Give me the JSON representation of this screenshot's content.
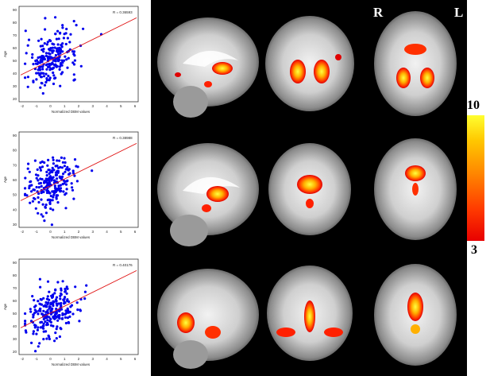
{
  "scatter_plots": [
    {
      "r_label": "R = 0.36593",
      "xlabel": "Normalized DBM values",
      "ylabel": "Age",
      "yticks": [
        "90",
        "80",
        "70",
        "60",
        "50",
        "40",
        "30",
        "20"
      ],
      "xticks": [
        "-2",
        "-1",
        "0",
        "1",
        "2",
        "3",
        "4",
        "5",
        "6"
      ]
    },
    {
      "r_label": "R = 0.38988",
      "xlabel": "Normalized DBM values",
      "ylabel": "Age",
      "yticks": [
        "90",
        "80",
        "70",
        "60",
        "50",
        "40",
        "30"
      ],
      "xticks": [
        "-2",
        "-1",
        "0",
        "1",
        "2",
        "3",
        "4",
        "5",
        "6"
      ]
    },
    {
      "r_label": "R = 0.40176",
      "xlabel": "Normalized DBM values",
      "ylabel": "Age",
      "yticks": [
        "90",
        "80",
        "70",
        "60",
        "50",
        "40",
        "30",
        "20"
      ],
      "xticks": [
        "-2",
        "-1",
        "0",
        "1",
        "2",
        "3",
        "4",
        "5",
        "6"
      ]
    }
  ],
  "orientation": {
    "right": "R",
    "left": "L"
  },
  "colorbar": {
    "max_label": "10",
    "min_label": "3"
  },
  "colors": {
    "points": "#0000ee",
    "fit_line": "#e01010",
    "scale_high": "#ffff30",
    "scale_low": "#e80000"
  }
}
